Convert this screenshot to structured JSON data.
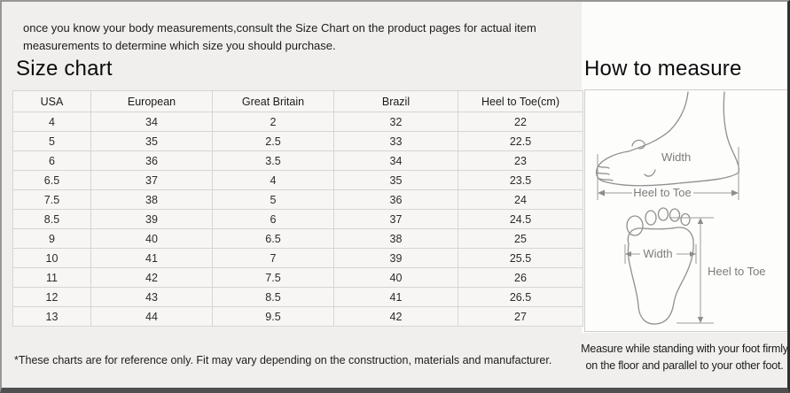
{
  "intro": "once you know your body measurements,consult the Size Chart on the product pages for actual item measurements to determine which size you should purchase.",
  "size_chart": {
    "title": "Size chart",
    "columns": [
      "USA",
      "European",
      "Great Britain",
      "Brazil",
      "Heel to Toe(cm)"
    ],
    "rows": [
      [
        "4",
        "34",
        "2",
        "32",
        "22"
      ],
      [
        "5",
        "35",
        "2.5",
        "33",
        "22.5"
      ],
      [
        "6",
        "36",
        "3.5",
        "34",
        "23"
      ],
      [
        "6.5",
        "37",
        "4",
        "35",
        "23.5"
      ],
      [
        "7.5",
        "38",
        "5",
        "36",
        "24"
      ],
      [
        "8.5",
        "39",
        "6",
        "37",
        "24.5"
      ],
      [
        "9",
        "40",
        "6.5",
        "38",
        "25"
      ],
      [
        "10",
        "41",
        "7",
        "39",
        "25.5"
      ],
      [
        "11",
        "42",
        "7.5",
        "40",
        "26"
      ],
      [
        "12",
        "43",
        "8.5",
        "41",
        "26.5"
      ],
      [
        "13",
        "44",
        "9.5",
        "42",
        "27"
      ]
    ],
    "footnote": "*These charts are for reference only. Fit may vary depending on the construction, materials and manufacturer."
  },
  "how_to_measure": {
    "title": "How to measure",
    "side_diagram": {
      "width_label": "Width",
      "heel_to_toe_label": "Heel to Toe"
    },
    "top_diagram": {
      "width_label": "Width",
      "heel_to_toe_label": "Heel to Toe"
    },
    "note": "Measure while standing with your foot firmly on the floor and parallel to your other foot."
  },
  "colors": {
    "page_bg": "#f0efed",
    "panel_bg": "#fdfdfc",
    "table_cell_bg": "#f7f6f4",
    "table_border": "#d7d5d1",
    "frame_dark": "#4f4f4f",
    "diagram_stroke": "#909090"
  }
}
